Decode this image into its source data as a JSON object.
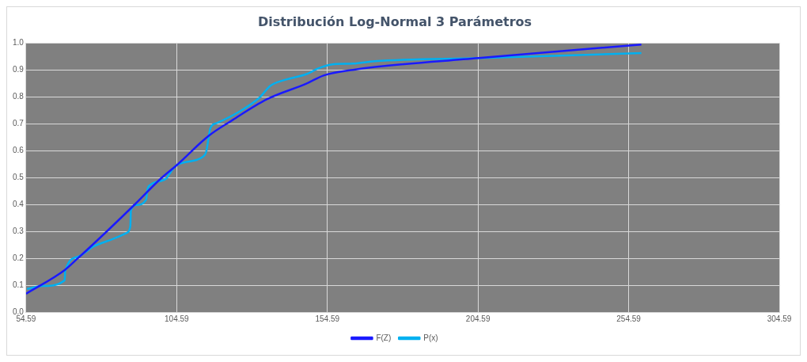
{
  "chart_data": {
    "type": "line",
    "title": "Distribución Log-Normal 3 Parámetros",
    "series": [
      {
        "name": "P(x)",
        "color": "#00b0f0",
        "x": [
          54.9,
          60.2,
          67.4,
          67.6,
          71.9,
          77.2,
          83.3,
          88.1,
          89.2,
          89.4,
          91.3,
          94.5,
          94.8,
          95.8,
          101.1,
          102.7,
          104.6,
          113.4,
          114.4,
          115.8,
          117.9,
          125.1,
          132.0,
          135.7,
          140.0,
          147.9,
          151.7,
          155.9,
          163.1,
          170.3,
          205.6,
          258.8
        ],
        "values": [
          0.086,
          0.097,
          0.118,
          0.153,
          0.206,
          0.245,
          0.271,
          0.295,
          0.319,
          0.378,
          0.398,
          0.419,
          0.451,
          0.472,
          0.496,
          0.522,
          0.546,
          0.578,
          0.596,
          0.684,
          0.702,
          0.743,
          0.796,
          0.841,
          0.861,
          0.885,
          0.906,
          0.92,
          0.923,
          0.932,
          0.944,
          0.962
        ]
      },
      {
        "name": "F(Z)",
        "color": "#1a1aff",
        "x": [
          54.59,
          67.4,
          71.9,
          81.5,
          90.5,
          99.3,
          104.6,
          115.2,
          123.2,
          134.6,
          147.9,
          153.3,
          163.1,
          204.8,
          258.8
        ],
        "values": [
          0.068,
          0.156,
          0.201,
          0.301,
          0.398,
          0.496,
          0.546,
          0.655,
          0.714,
          0.791,
          0.85,
          0.879,
          0.9,
          0.944,
          0.994
        ]
      }
    ],
    "xlim": [
      54.59,
      304.59
    ],
    "xticks": [
      54.59,
      104.59,
      154.59,
      204.59,
      254.59,
      304.59
    ],
    "ylim": [
      0,
      1
    ],
    "yticks": [
      {
        "value": 0,
        "label": "0.0"
      },
      {
        "value": 0.1,
        "label": "0.1"
      },
      {
        "value": 0.2,
        "label": "0.2"
      },
      {
        "value": 0.3,
        "label": "0.3"
      },
      {
        "value": 0.4,
        "label": "0.4"
      },
      {
        "value": 0.5,
        "label": "0.5"
      },
      {
        "value": 0.6,
        "label": "0.6"
      },
      {
        "value": 0.7,
        "label": "0.7"
      },
      {
        "value": 0.8,
        "label": "0.8"
      },
      {
        "value": 0.9,
        "label": "0.9"
      },
      {
        "value": 1,
        "label": "1.0"
      }
    ],
    "grid": true,
    "legend": "bottom",
    "line_style": "solid",
    "marker": "none"
  }
}
